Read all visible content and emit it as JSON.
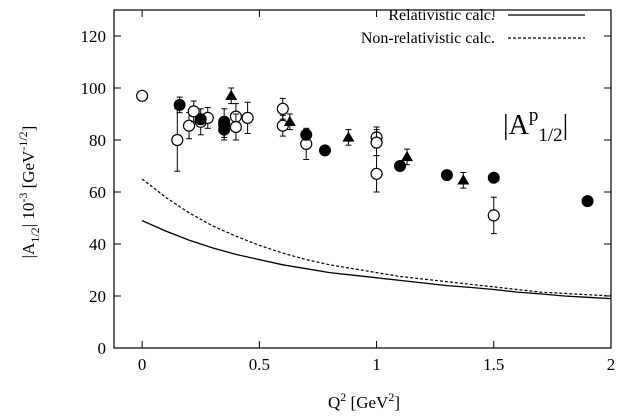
{
  "chart_data": {
    "type": "scatter",
    "xlabel": "Q2 [GeV2]",
    "ylabel": "|A1/2| 10-3 [GeV-1/2]",
    "xlabel_parts": {
      "main": "Q",
      "sup": "2",
      "rest": " [GeV",
      "sup2": "2",
      "end": "]"
    },
    "ylabel_parts": {
      "a": "|A",
      "sub": "1/2",
      "b": "| 10",
      "sup1": "-3",
      "c": " [GeV",
      "sup2": "-1/2",
      "d": "]"
    },
    "annotation": {
      "a": "|A",
      "sup": "p",
      "sub": "1/2",
      "b": "|"
    },
    "xlim": [
      -0.12,
      2.0
    ],
    "ylim": [
      0,
      130
    ],
    "xticks": [
      0,
      0.5,
      1,
      1.5,
      2
    ],
    "xtick_labels": [
      "0",
      "0.5",
      "1",
      "1.5",
      "2"
    ],
    "yticks": [
      0,
      20,
      40,
      60,
      80,
      100,
      120
    ],
    "ytick_labels": [
      "0",
      "20",
      "40",
      "60",
      "80",
      "100",
      "120"
    ],
    "grid": false,
    "legend_position": "top-right",
    "curves": [
      {
        "name": "Relativistic calc.",
        "style": "solid",
        "x": [
          0,
          0.1,
          0.2,
          0.3,
          0.4,
          0.5,
          0.6,
          0.7,
          0.8,
          0.9,
          1.0,
          1.1,
          1.2,
          1.3,
          1.4,
          1.5,
          1.6,
          1.7,
          1.8,
          1.9,
          2.0
        ],
        "y": [
          49,
          45,
          41.5,
          38.5,
          36,
          34,
          32,
          30.5,
          29,
          28,
          27,
          26,
          25,
          24,
          23.3,
          22.5,
          21.5,
          20.8,
          20,
          19.5,
          19
        ]
      },
      {
        "name": "Non-relativistic calc.",
        "style": "dashed",
        "x": [
          0,
          0.1,
          0.2,
          0.3,
          0.4,
          0.5,
          0.6,
          0.7,
          0.8,
          0.9,
          1.0,
          1.1,
          1.2,
          1.3,
          1.4,
          1.5,
          1.6,
          1.7,
          1.8,
          1.9,
          2.0
        ],
        "y": [
          65,
          58,
          52,
          47,
          43,
          39.5,
          36.5,
          34,
          32,
          30.5,
          29,
          27.5,
          26.5,
          25.5,
          24.5,
          23.5,
          22.5,
          21.5,
          21,
          20.5,
          20
        ]
      }
    ],
    "series": [
      {
        "marker": "open-circle",
        "x": [
          0,
          0.15,
          0.2,
          0.22,
          0.25,
          0.28,
          0.35,
          0.4,
          0.4,
          0.45,
          0.6,
          0.6,
          0.7,
          1.0,
          1.0,
          1.0,
          1.5
        ],
        "y": [
          97,
          80,
          85.5,
          91,
          87,
          88.5,
          86,
          89,
          85,
          88.5,
          92,
          85.5,
          78.5,
          81,
          79,
          67,
          51
        ],
        "err": [
          0,
          12,
          5,
          4,
          5,
          4,
          6,
          5,
          5,
          6,
          4,
          4,
          6,
          4,
          5,
          7,
          7
        ]
      },
      {
        "marker": "filled-circle",
        "x": [
          0.16,
          0.25,
          0.35,
          0.35,
          0.7,
          0.78,
          1.1,
          1.3,
          1.5,
          1.9
        ],
        "y": [
          93.5,
          88,
          87,
          84,
          82,
          76,
          70,
          66.5,
          65.5,
          56.5
        ],
        "err": [
          3,
          2,
          2,
          3,
          2,
          1,
          1,
          1,
          1,
          1
        ]
      },
      {
        "marker": "filled-triangle",
        "x": [
          0.38,
          0.63,
          0.88,
          1.13,
          1.37
        ],
        "y": [
          97,
          87,
          81,
          73.5,
          64.5
        ],
        "err": [
          3,
          3,
          3,
          3,
          3
        ]
      }
    ]
  }
}
